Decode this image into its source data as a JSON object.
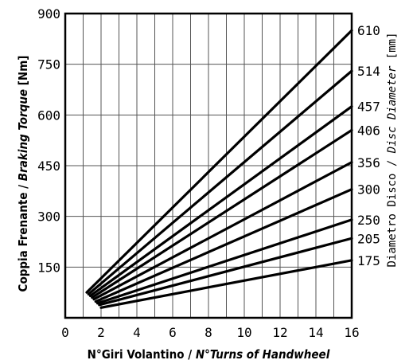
{
  "chart_data": {
    "type": "line",
    "xlabel_main": "N°Giri Volantino",
    "xlabel_sep": " / ",
    "xlabel_alt": "N°Turns of Handwheel",
    "ylabel_main": "Coppia Frenante",
    "ylabel_sep": " / ",
    "ylabel_alt": "Braking Torque",
    "ylabel_unit": " [Nm]",
    "y2label_main": "Diametro Disco",
    "y2label_sep": " / ",
    "y2label_alt": "Disc Diameter",
    "y2label_unit": " [mm]",
    "xlim": [
      0,
      16
    ],
    "ylim": [
      0,
      900
    ],
    "x_ticks": [
      "0",
      "2",
      "4",
      "6",
      "8",
      "10",
      "12",
      "14",
      "16"
    ],
    "y_ticks": [
      "150",
      "300",
      "450",
      "600",
      "750",
      "900"
    ],
    "grid": true,
    "series": [
      {
        "name": "610",
        "x": [
          1.2,
          16
        ],
        "y": [
          75,
          850
        ]
      },
      {
        "name": "514",
        "x": [
          1.3,
          16
        ],
        "y": [
          70,
          730
        ]
      },
      {
        "name": "457",
        "x": [
          1.4,
          16
        ],
        "y": [
          65,
          625
        ]
      },
      {
        "name": "406",
        "x": [
          1.5,
          16
        ],
        "y": [
          60,
          555
        ]
      },
      {
        "name": "356",
        "x": [
          1.6,
          16
        ],
        "y": [
          55,
          460
        ]
      },
      {
        "name": "300",
        "x": [
          1.7,
          16
        ],
        "y": [
          48,
          380
        ]
      },
      {
        "name": "250",
        "x": [
          1.8,
          16
        ],
        "y": [
          43,
          290
        ]
      },
      {
        "name": "205",
        "x": [
          1.9,
          16
        ],
        "y": [
          38,
          235
        ]
      },
      {
        "name": "175",
        "x": [
          2.0,
          16
        ],
        "y": [
          30,
          170
        ]
      }
    ]
  }
}
